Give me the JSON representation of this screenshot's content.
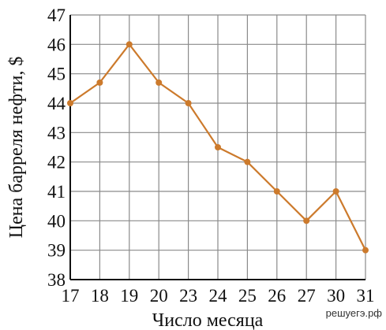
{
  "chart_data": {
    "type": "line",
    "xlabel": "Число месяца",
    "ylabel": "Цена барреля нефти, $",
    "categories": [
      "17",
      "18",
      "19",
      "20",
      "23",
      "24",
      "25",
      "26",
      "27",
      "30",
      "31"
    ],
    "values": [
      44,
      44.7,
      46,
      44.7,
      44,
      42.5,
      42,
      41,
      40,
      41,
      39
    ],
    "ylim": [
      38,
      47
    ],
    "yticks": [
      "38",
      "39",
      "40",
      "41",
      "42",
      "43",
      "44",
      "45",
      "46",
      "47"
    ],
    "grid": true,
    "line_color": "#cc7a2c"
  },
  "watermark": "решуегэ.рф"
}
